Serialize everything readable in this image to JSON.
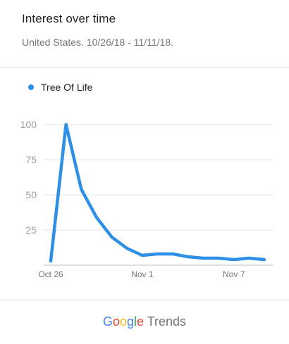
{
  "header": {
    "title": "Interest over time",
    "subtitle": "United States. 10/26/18 - 11/11/18."
  },
  "legend": {
    "label": "Tree Of Life",
    "color": "#2d8fe6"
  },
  "chart_data": {
    "type": "line",
    "x": [
      "Oct 26",
      "Oct 27",
      "Oct 28",
      "Oct 29",
      "Oct 30",
      "Oct 31",
      "Nov 1",
      "Nov 2",
      "Nov 3",
      "Nov 4",
      "Nov 5",
      "Nov 6",
      "Nov 7",
      "Nov 8",
      "Nov 9"
    ],
    "series": [
      {
        "name": "Tree Of Life",
        "values": [
          3,
          100,
          54,
          34,
          20,
          12,
          7,
          8,
          8,
          6,
          5,
          5,
          4,
          5,
          4
        ]
      }
    ],
    "xticks": [
      "Oct 26",
      "Nov 1",
      "Nov 7"
    ],
    "yticks": [
      "100",
      "75",
      "50",
      "25"
    ],
    "ylim": [
      0,
      100
    ],
    "grid": true,
    "series_color": "#2d8fe6"
  },
  "footer": {
    "brand_google": [
      {
        "ch": "G",
        "color": "#4285f4"
      },
      {
        "ch": "o",
        "color": "#ea4335"
      },
      {
        "ch": "o",
        "color": "#fbbc05"
      },
      {
        "ch": "g",
        "color": "#4285f4"
      },
      {
        "ch": "l",
        "color": "#34a853"
      },
      {
        "ch": "e",
        "color": "#ea4335"
      }
    ],
    "brand_product": "Trends"
  }
}
